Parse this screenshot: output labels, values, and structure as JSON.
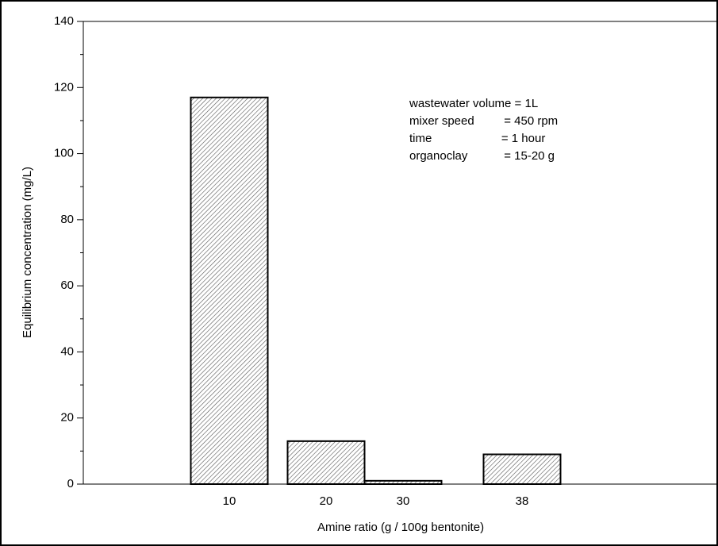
{
  "chart_data": {
    "type": "bar",
    "x_label": "Amine ratio (g / 100g bentonite)",
    "y_label": "Equilibrium concentration (mg/L)",
    "categories": [
      "10",
      "20",
      "30",
      "38"
    ],
    "values": [
      117,
      13,
      1,
      9
    ],
    "color": "#000000",
    "ylim": [
      0,
      140
    ],
    "yticks": [
      0,
      20,
      40,
      60,
      80,
      100,
      120,
      140
    ],
    "annotations": [
      "wastewater volume = 1L",
      "mixer speed         = 450 rpm",
      "time                     = 1 hour",
      "organoclay           = 15-20 g"
    ]
  }
}
